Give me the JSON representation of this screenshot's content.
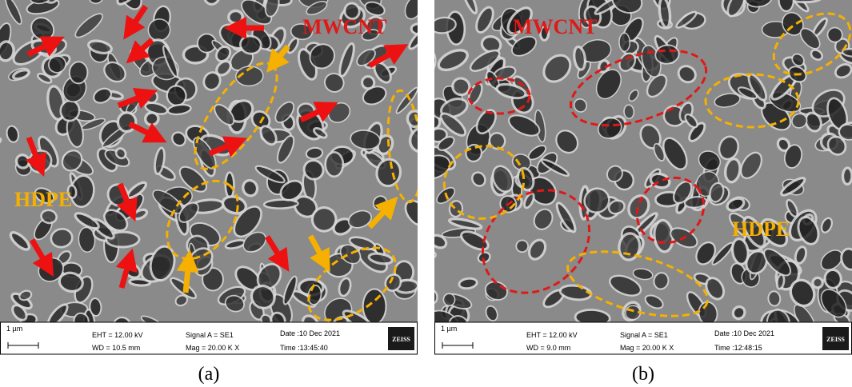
{
  "panels": [
    {
      "labels": {
        "filler": "MWCNT",
        "matrix": "HDPE"
      },
      "info": {
        "scale": "1 µm",
        "eht": "EHT = 12.00 kV",
        "wd": "WD = 10.5 mm",
        "signal": "Signal A = SE1",
        "mag": "Mag =  20.00 K X",
        "date": "Date :10 Dec 2021",
        "time": "Time :13:45:40",
        "brand": "ZEISS"
      },
      "caption": "(a)"
    },
    {
      "labels": {
        "filler": "MWCNT",
        "matrix": "HDPE"
      },
      "info": {
        "scale": "1 µm",
        "eht": "EHT = 12.00 kV",
        "wd": "WD =  9.0 mm",
        "signal": "Signal A = SE1",
        "mag": "Mag =  20.00 K X",
        "date": "Date :10 Dec 2021",
        "time": "Time :12:48:15",
        "brand": "ZEISS"
      },
      "caption": "(b)"
    }
  ]
}
